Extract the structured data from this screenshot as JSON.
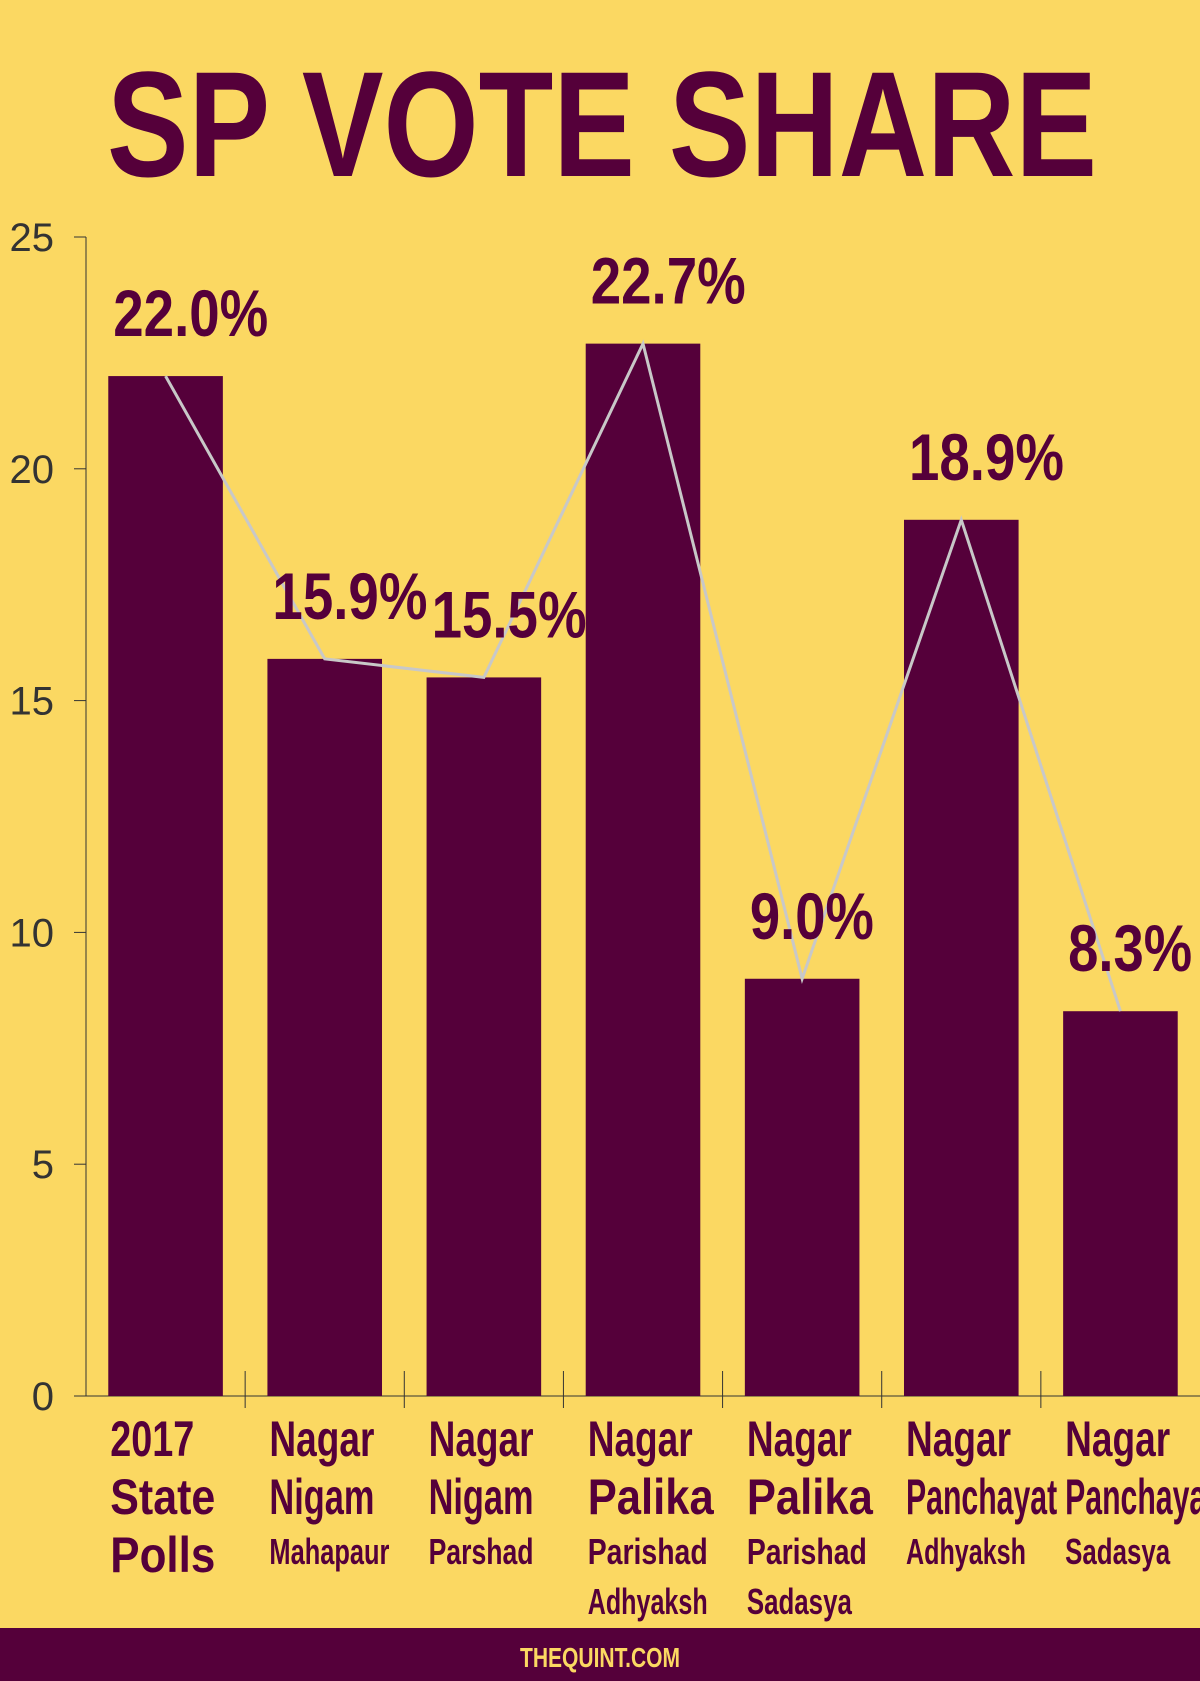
{
  "chart_data": {
    "type": "bar",
    "title": "SP VOTE SHARE",
    "categories": [
      "2017 State Polls",
      "Nagar Nigam Mahapaur",
      "Nagar Nigam Parshad",
      "Nagar Palika Parishad Adhyaksh",
      "Nagar Palika Parishad Sadasya",
      "Nagar Panchayat Adhyaksh",
      "Nagar Panchayat Sadasya"
    ],
    "values": [
      22.0,
      15.9,
      15.5,
      22.7,
      9.0,
      18.9,
      8.3
    ],
    "value_labels": [
      "22.0%",
      "15.9%",
      "15.5%",
      "22.7%",
      "9.0%",
      "18.9%",
      "8.3%"
    ],
    "color": "#55003a",
    "ylim": [
      0,
      25
    ],
    "yticks": [
      0,
      5,
      10,
      15,
      20,
      25
    ],
    "footer": "THEQUINT.COM"
  }
}
